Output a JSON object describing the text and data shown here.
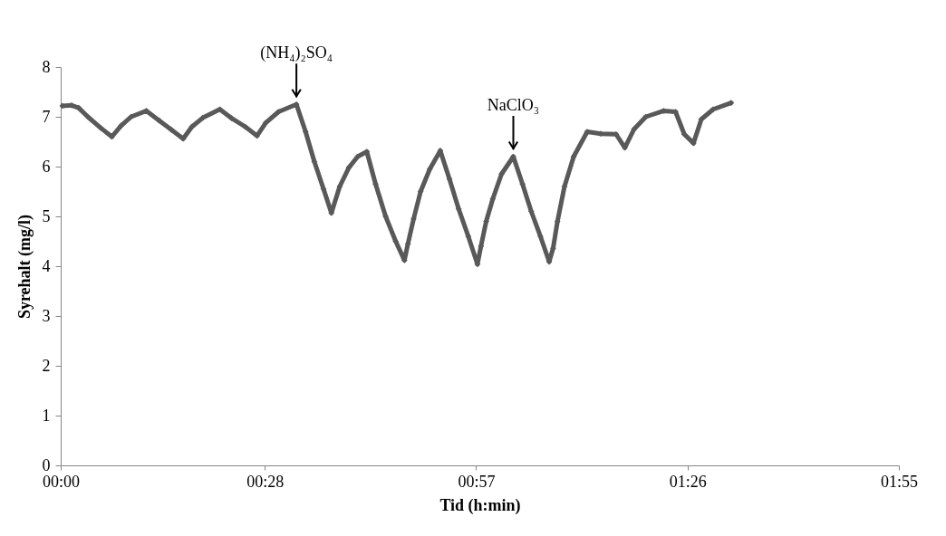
{
  "chart_data": {
    "type": "line",
    "xlabel": "Tid (h:min)",
    "ylabel": "Syrehalt (mg/l)",
    "x": [
      0.004,
      0.025,
      0.041,
      0.062,
      0.091,
      0.117,
      0.138,
      0.161,
      0.196,
      0.226,
      0.253,
      0.28,
      0.3,
      0.325,
      0.364,
      0.391,
      0.422,
      0.449,
      0.469,
      0.498,
      0.539,
      0.56,
      0.58,
      0.601,
      0.619,
      0.638,
      0.659,
      0.679,
      0.7,
      0.72,
      0.743,
      0.766,
      0.786,
      0.794,
      0.807,
      0.823,
      0.844,
      0.868,
      0.889,
      0.91,
      0.932,
      0.953,
      0.961,
      0.973,
      0.988,
      1.008,
      1.035,
      1.056,
      1.076,
      1.097,
      1.117,
      1.126,
      1.136,
      1.152,
      1.173,
      1.204,
      1.235,
      1.27,
      1.29,
      1.311,
      1.338,
      1.379,
      1.406,
      1.426,
      1.447,
      1.465,
      1.492,
      1.533
    ],
    "series": [
      {
        "color": "#595959",
        "values": [
          7.22,
          7.23,
          7.18,
          7.0,
          6.78,
          6.6,
          6.82,
          7.0,
          7.12,
          6.92,
          6.74,
          6.56,
          6.8,
          6.98,
          7.15,
          6.97,
          6.8,
          6.62,
          6.88,
          7.1,
          7.25,
          6.7,
          6.1,
          5.55,
          5.07,
          5.6,
          5.98,
          6.2,
          6.3,
          5.65,
          5.0,
          4.5,
          4.12,
          4.45,
          4.95,
          5.5,
          5.95,
          6.32,
          5.75,
          5.15,
          4.6,
          4.04,
          4.4,
          4.9,
          5.35,
          5.85,
          6.2,
          5.65,
          5.1,
          4.6,
          4.09,
          4.36,
          4.9,
          5.6,
          6.2,
          6.7,
          6.66,
          6.65,
          6.38,
          6.75,
          7.0,
          7.12,
          7.1,
          6.65,
          6.47,
          6.95,
          7.15,
          7.28
        ]
      }
    ],
    "xlim": [
      0,
      1.9167
    ],
    "xticks": [
      {
        "value": 0,
        "label": "00:00"
      },
      {
        "value": 0.4667,
        "label": "00:28"
      },
      {
        "value": 0.95,
        "label": "00:57"
      },
      {
        "value": 1.4333,
        "label": "01:26"
      },
      {
        "value": 1.9167,
        "label": "01:55"
      }
    ],
    "ylim": [
      0,
      8
    ],
    "yticks": [
      0,
      1,
      2,
      3,
      4,
      5,
      6,
      7,
      8
    ],
    "marker": "diamond",
    "line_style": "solid",
    "grid": false,
    "annotations": [
      {
        "text": "(NH₄)₂SO₄",
        "x": 0.539,
        "y": 7.25
      },
      {
        "text": "NaClO₃",
        "x": 1.035,
        "y": 6.2
      }
    ]
  }
}
